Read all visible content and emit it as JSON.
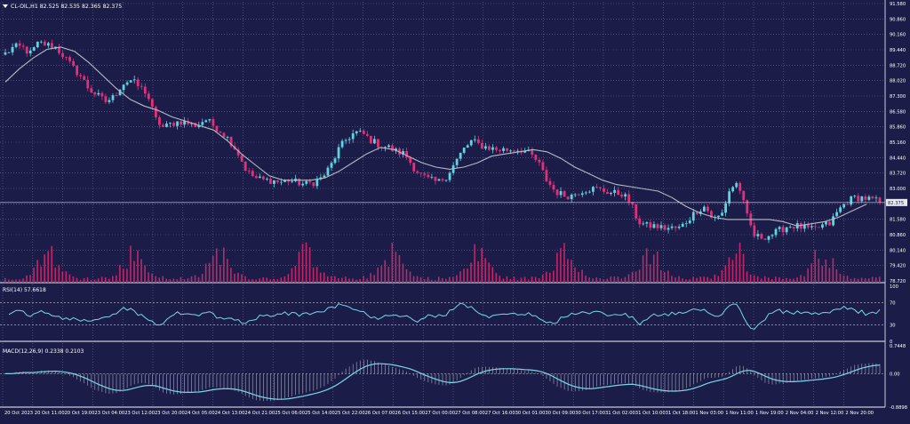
{
  "header": {
    "symbol_line": "CL-OIL,H1  82.525 82.535 82.365 82.375"
  },
  "colors": {
    "background": "#1b1d48",
    "grid": "#6a6c97",
    "bull": "#5fd4e0",
    "bear": "#e2307a",
    "ma": "#b8b8c8",
    "volume": "#c02668",
    "rsi_line": "#7ad7e8",
    "macd_line": "#7ad7e8",
    "macd_hist": "#a9abc4",
    "text": "#ffffff",
    "price_tag_bg": "#e8e8f0",
    "price_tag_text": "#1b1d48"
  },
  "chart_data": [
    {
      "type": "candlestick",
      "symbol": "CL-OIL",
      "timeframe": "H1",
      "last_price": "82.375",
      "ylim": [
        78.7,
        91.58
      ],
      "y_tick_labels": [
        "91.580",
        "90.860",
        "90.160",
        "89.440",
        "88.720",
        "88.020",
        "87.300",
        "86.580",
        "85.860",
        "85.160",
        "84.440",
        "83.720",
        "83.000",
        "82.300",
        "81.580",
        "80.860",
        "80.140",
        "79.420",
        "78.720"
      ],
      "x_tick_labels": [
        "20 Oct 2023",
        "20 Oct 11:00",
        "20 Oct 19:00",
        "23 Oct 04:00",
        "23 Oct 12:00",
        "23 Oct 20:00",
        "24 Oct 05:00",
        "24 Oct 13:00",
        "24 Oct 21:00",
        "25 Oct 06:00",
        "25 Oct 14:00",
        "25 Oct 22:00",
        "26 Oct 07:00",
        "26 Oct 15:00",
        "27 Oct 00:00",
        "27 Oct 08:00",
        "27 Oct 16:00",
        "30 Oct 01:00",
        "30 Oct 09:00",
        "30 Oct 17:00",
        "31 Oct 02:00",
        "31 Oct 10:00",
        "31 Oct 18:00",
        "1 Nov 03:00",
        "1 Nov 11:00",
        "1 Nov 19:00",
        "2 Nov 04:00",
        "2 Nov 12:00",
        "2 Nov 20:00"
      ],
      "close_path": [
        89.2,
        89.5,
        89.5,
        89.2,
        89.7,
        89.6,
        89.5,
        89.1,
        88.6,
        88.2,
        87.6,
        87.3,
        87.0,
        87.2,
        87.8,
        88.0,
        87.7,
        87.4,
        86.2,
        85.8,
        86.0,
        86.1,
        86.0,
        85.9,
        86.2,
        85.9,
        85.6,
        85.2,
        84.6,
        83.8,
        83.5,
        83.4,
        83.4,
        83.3,
        83.4,
        83.3,
        83.2,
        83.3,
        83.5,
        84.0,
        84.8,
        85.3,
        85.6,
        85.5,
        85.2,
        85.0,
        84.9,
        84.7,
        84.6,
        84.0,
        83.6,
        83.4,
        83.3,
        83.6,
        84.2,
        84.8,
        85.2,
        85.0,
        84.9,
        84.8,
        84.8,
        84.8,
        84.8,
        84.6,
        84.2,
        83.4,
        82.9,
        82.7,
        82.7,
        82.9,
        83.0,
        83.0,
        82.9,
        82.8,
        82.8,
        82.4,
        81.5,
        81.3,
        81.3,
        81.2,
        81.2,
        81.2,
        81.6,
        82.0,
        82.2,
        81.6,
        81.8,
        83.0,
        83.3,
        81.8,
        80.8,
        80.8,
        80.9,
        81.1,
        81.3,
        81.3,
        81.2,
        81.1,
        81.3,
        81.4,
        82.0,
        82.4,
        82.6,
        82.6,
        82.5,
        82.4
      ],
      "ma_path": [
        87.9,
        88.5,
        89.0,
        89.4,
        89.5,
        89.3,
        88.8,
        88.2,
        87.6,
        87.1,
        86.8,
        86.6,
        86.3,
        86.1,
        85.9,
        85.7,
        85.2,
        84.6,
        84.1,
        83.6,
        83.4,
        83.4,
        83.4,
        83.5,
        83.8,
        84.2,
        84.6,
        84.9,
        84.8,
        84.5,
        84.2,
        84.0,
        83.9,
        84.0,
        84.2,
        84.5,
        84.6,
        84.7,
        84.8,
        84.7,
        84.4,
        84.0,
        83.7,
        83.4,
        83.2,
        83.1,
        83.0,
        82.9,
        82.6,
        82.2,
        81.9,
        81.7,
        81.6,
        81.6,
        81.6,
        81.6,
        81.5,
        81.3,
        81.4,
        81.5,
        81.7,
        82.0,
        82.3
      ]
    },
    {
      "type": "bar",
      "name": "Volume"
    },
    {
      "type": "line",
      "name": "RSI(14)",
      "label": "RSI(14) 57.6618",
      "value": 57.6618,
      "ylim": [
        0,
        100
      ],
      "y_tick_labels": [
        "100",
        "70",
        "30",
        "0"
      ],
      "levels": [
        70,
        30
      ]
    },
    {
      "type": "line",
      "name": "MACD(12,26,9)",
      "label": "MACD(12,26,9) 0.2338 0.2103",
      "macd": 0.2338,
      "signal": 0.2103,
      "ylim": [
        -0.8898,
        0.7448
      ],
      "y_tick_labels": [
        "0.7448",
        "0.00",
        "-0.8898"
      ]
    }
  ]
}
